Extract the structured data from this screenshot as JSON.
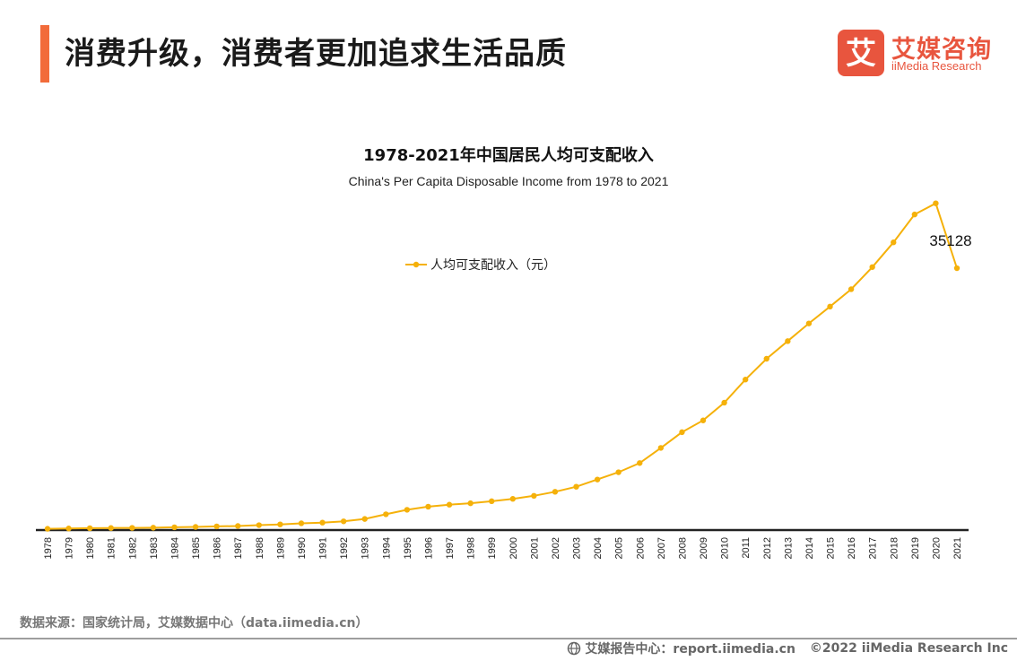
{
  "header": {
    "title": "消费升级，消费者更加追求生活品质",
    "accent_color": "#f26b3a"
  },
  "logo": {
    "mark_char": "艾",
    "name_cn": "艾媒咨询",
    "name_en": "iiMedia Research",
    "color": "#e8553e"
  },
  "footer": {
    "source": "数据来源：国家统计局，艾媒数据中心（data.iimedia.cn）",
    "report_center": "艾媒报告中心：report.iimedia.cn",
    "copyright": "©2022  iiMedia Research  Inc"
  },
  "chart_data": {
    "type": "line",
    "title": "1978-2021年中国居民人均可支配收入",
    "subtitle": "China's Per Capita Disposable Income from 1978 to 2021",
    "legend_position": "top-center",
    "line_color": "#f5b10a",
    "x": [
      "1978",
      "1979",
      "1980",
      "1981",
      "1982",
      "1983",
      "1984",
      "1985",
      "1986",
      "1987",
      "1988",
      "1989",
      "1990",
      "1991",
      "1992",
      "1993",
      "1994",
      "1995",
      "1996",
      "1997",
      "1998",
      "1999",
      "2000",
      "2001",
      "2002",
      "2003",
      "2004",
      "2005",
      "2006",
      "2007",
      "2008",
      "2009",
      "2010",
      "2011",
      "2012",
      "2013",
      "2014",
      "2015",
      "2016",
      "2017",
      "2018",
      "2019",
      "2020",
      "2021"
    ],
    "series": [
      {
        "name": "人均可支配收入（元）",
        "values": [
          171,
          212,
          247,
          273,
          292,
          317,
          367,
          421,
          494,
          546,
          659,
          759,
          904,
          996,
          1168,
          1489,
          2116,
          2720,
          3137,
          3404,
          3595,
          3868,
          4184,
          4595,
          5136,
          5814,
          6781,
          7759,
          8990,
          11022,
          13131,
          14710,
          17090,
          20188,
          22982,
          25347,
          27717,
          29979,
          32312,
          35282,
          38598,
          42337,
          43834,
          35128
        ],
        "last_label": "35128"
      }
    ],
    "ylim": [
      0,
      45000
    ],
    "grid": false
  }
}
